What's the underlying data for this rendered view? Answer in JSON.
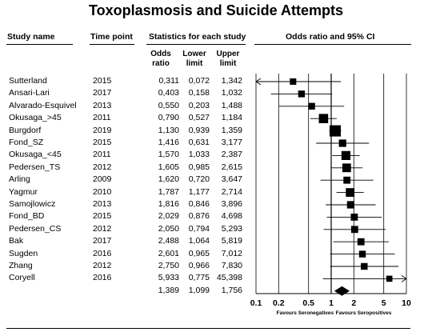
{
  "chart_data": {
    "type": "forest",
    "title": "Toxoplasmosis and Suicide Attempts",
    "headers": {
      "study_name": "Study name",
      "time_point": "Time point",
      "stats": "Statistics for each study",
      "plot": "Odds ratio and 95% CI",
      "or": [
        "Odds",
        "ratio"
      ],
      "lower": [
        "Lower",
        "limit"
      ],
      "upper": [
        "Upper",
        "limit"
      ]
    },
    "studies": [
      {
        "name": "Sutterland",
        "year": "2015",
        "or": "0,311",
        "lower": "0,072",
        "upper": "1,342",
        "or_v": 0.311,
        "lo_v": 0.072,
        "up_v": 1.342,
        "w": 0.5
      },
      {
        "name": "Ansari-Lari",
        "year": "2017",
        "or": "0,403",
        "lower": "0,158",
        "upper": "1,032",
        "or_v": 0.403,
        "lo_v": 0.158,
        "up_v": 1.032,
        "w": 0.55
      },
      {
        "name": "Alvarado-Esquivel",
        "year": "2013",
        "or": "0,550",
        "lower": "0,203",
        "upper": "1,488",
        "or_v": 0.55,
        "lo_v": 0.203,
        "up_v": 1.488,
        "w": 0.55
      },
      {
        "name": "Okusaga_>45",
        "year": "2011",
        "or": "0,790",
        "lower": "0,527",
        "upper": "1,184",
        "or_v": 0.79,
        "lo_v": 0.527,
        "up_v": 1.184,
        "w": 0.95
      },
      {
        "name": "Burgdorf",
        "year": "2019",
        "or": "1,130",
        "lower": "0,939",
        "upper": "1,359",
        "or_v": 1.13,
        "lo_v": 0.939,
        "up_v": 1.359,
        "w": 1.25
      },
      {
        "name": "Fond_SZ",
        "year": "2015",
        "or": "1,416",
        "lower": "0,631",
        "upper": "3,177",
        "or_v": 1.416,
        "lo_v": 0.631,
        "up_v": 3.177,
        "w": 0.65
      },
      {
        "name": "Okusaga_<45",
        "year": "2011",
        "or": "1,570",
        "lower": "1,033",
        "upper": "2,387",
        "or_v": 1.57,
        "lo_v": 1.033,
        "up_v": 2.387,
        "w": 0.9
      },
      {
        "name": "Pedersen_TS",
        "year": "2012",
        "or": "1,605",
        "lower": "0,985",
        "upper": "2,615",
        "or_v": 1.605,
        "lo_v": 0.985,
        "up_v": 2.615,
        "w": 0.85
      },
      {
        "name": "Arling",
        "year": "2009",
        "or": "1,620",
        "lower": "0,720",
        "upper": "3,647",
        "or_v": 1.62,
        "lo_v": 0.72,
        "up_v": 3.647,
        "w": 0.6
      },
      {
        "name": "Yagmur",
        "year": "2010",
        "or": "1,787",
        "lower": "1,177",
        "upper": "2,714",
        "or_v": 1.787,
        "lo_v": 1.177,
        "up_v": 2.714,
        "w": 0.85
      },
      {
        "name": "Samojlowicz",
        "year": "2013",
        "or": "1,816",
        "lower": "0,846",
        "upper": "3,896",
        "or_v": 1.816,
        "lo_v": 0.846,
        "up_v": 3.896,
        "w": 0.65
      },
      {
        "name": "Fond_BD",
        "year": "2015",
        "or": "2,029",
        "lower": "0,876",
        "upper": "4,698",
        "or_v": 2.029,
        "lo_v": 0.876,
        "up_v": 4.698,
        "w": 0.6
      },
      {
        "name": "Pedersen_CS",
        "year": "2012",
        "or": "2,050",
        "lower": "0,794",
        "upper": "5,293",
        "or_v": 2.05,
        "lo_v": 0.794,
        "up_v": 5.293,
        "w": 0.6
      },
      {
        "name": "Bak",
        "year": "2017",
        "or": "2,488",
        "lower": "1,064",
        "upper": "5,819",
        "or_v": 2.488,
        "lo_v": 1.064,
        "up_v": 5.819,
        "w": 0.6
      },
      {
        "name": "Sugden",
        "year": "2016",
        "or": "2,601",
        "lower": "0,965",
        "upper": "7,012",
        "or_v": 2.601,
        "lo_v": 0.965,
        "up_v": 7.012,
        "w": 0.55
      },
      {
        "name": "Zhang",
        "year": "2012",
        "or": "2,750",
        "lower": "0,966",
        "upper": "7,830",
        "or_v": 2.75,
        "lo_v": 0.966,
        "up_v": 7.83,
        "w": 0.55
      },
      {
        "name": "Coryell",
        "year": "2016",
        "or": "5,933",
        "lower": "0,775",
        "upper": "45,398",
        "or_v": 5.933,
        "lo_v": 0.775,
        "up_v": 45.398,
        "w": 0.45
      }
    ],
    "summary": {
      "or": "1,389",
      "lower": "1,099",
      "upper": "1,756",
      "or_v": 1.389,
      "lo_v": 1.099,
      "up_v": 1.756
    },
    "x_axis": {
      "scale": "log",
      "range": [
        0.1,
        10
      ],
      "ticks": [
        0.1,
        0.2,
        0.5,
        1,
        2,
        5,
        10
      ],
      "tick_labels": [
        "0.1",
        "0.2",
        "0.5",
        "1",
        "2",
        "5",
        "10"
      ]
    },
    "favours_left": "Favours Seronegatives",
    "favours_right": "Favours Seropositives"
  }
}
